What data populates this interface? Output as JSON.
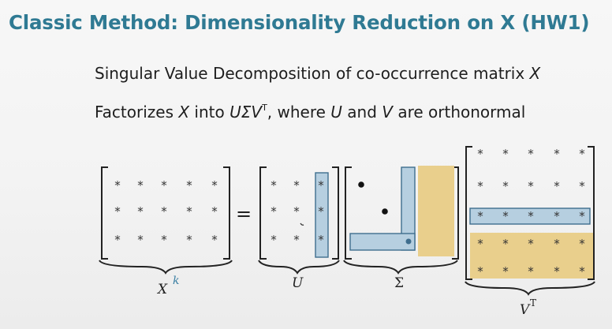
{
  "slide": {
    "title": "Classic Method: Dimensionality Reduction on X (HW1)"
  },
  "bullets": {
    "line1": {
      "prefix": "Singular Value Decomposition of co-occurrence matrix ",
      "var": "X"
    },
    "line2": {
      "part1": "Factorizes ",
      "var_x": "X",
      "part2": " into ",
      "usv": "UΣV",
      "sup": "T",
      "part3": ", where ",
      "var_u": "U",
      "part4": " and ",
      "var_v": "V",
      "part5": " are orthonormal"
    }
  },
  "figure": {
    "star": "*",
    "equals": "=",
    "labels": {
      "x": "X",
      "x_sup": "k",
      "u": "U",
      "sigma": "Σ",
      "vt": "V",
      "vt_sup": "T"
    },
    "colors": {
      "blue_fill": "#b6cfe0",
      "blue_stroke": "#3f6e8e",
      "gold_fill": "#e9cf8c",
      "k_label": "#3a7fa3"
    }
  }
}
